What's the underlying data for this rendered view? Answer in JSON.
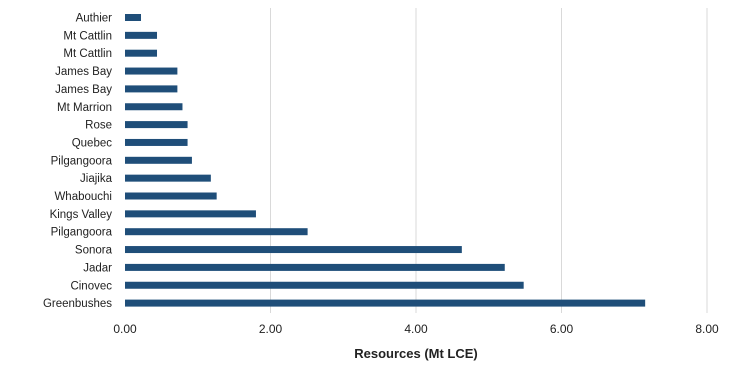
{
  "chart_data": {
    "type": "bar",
    "orientation": "horizontal",
    "categories": [
      "Authier",
      "Mt Cattlin",
      "Mt Cattlin",
      "James Bay",
      "James Bay",
      "Mt Marrion",
      "Rose",
      "Quebec",
      "Pilgangoora",
      "Jiajika",
      "Whabouchi",
      "Kings Valley",
      "Pilgangoora",
      "Sonora",
      "Jadar",
      "Cinovec",
      "Greenbushes"
    ],
    "values": [
      0.22,
      0.44,
      0.44,
      0.72,
      0.72,
      0.79,
      0.86,
      0.86,
      0.92,
      1.18,
      1.26,
      1.8,
      2.51,
      4.63,
      5.22,
      5.48,
      7.15
    ],
    "xlabel": "Resources (Mt LCE)",
    "ylabel": "",
    "xlim": [
      0,
      8
    ],
    "xticks": [
      "0.00",
      "2.00",
      "4.00",
      "6.00",
      "8.00"
    ],
    "xtick_values": [
      0,
      2,
      4,
      6,
      8
    ],
    "grid": "vertical",
    "legend": "none",
    "colors": {
      "bar": "#1f4e79",
      "grid": "#d9d9d9",
      "text": "#222222"
    }
  }
}
